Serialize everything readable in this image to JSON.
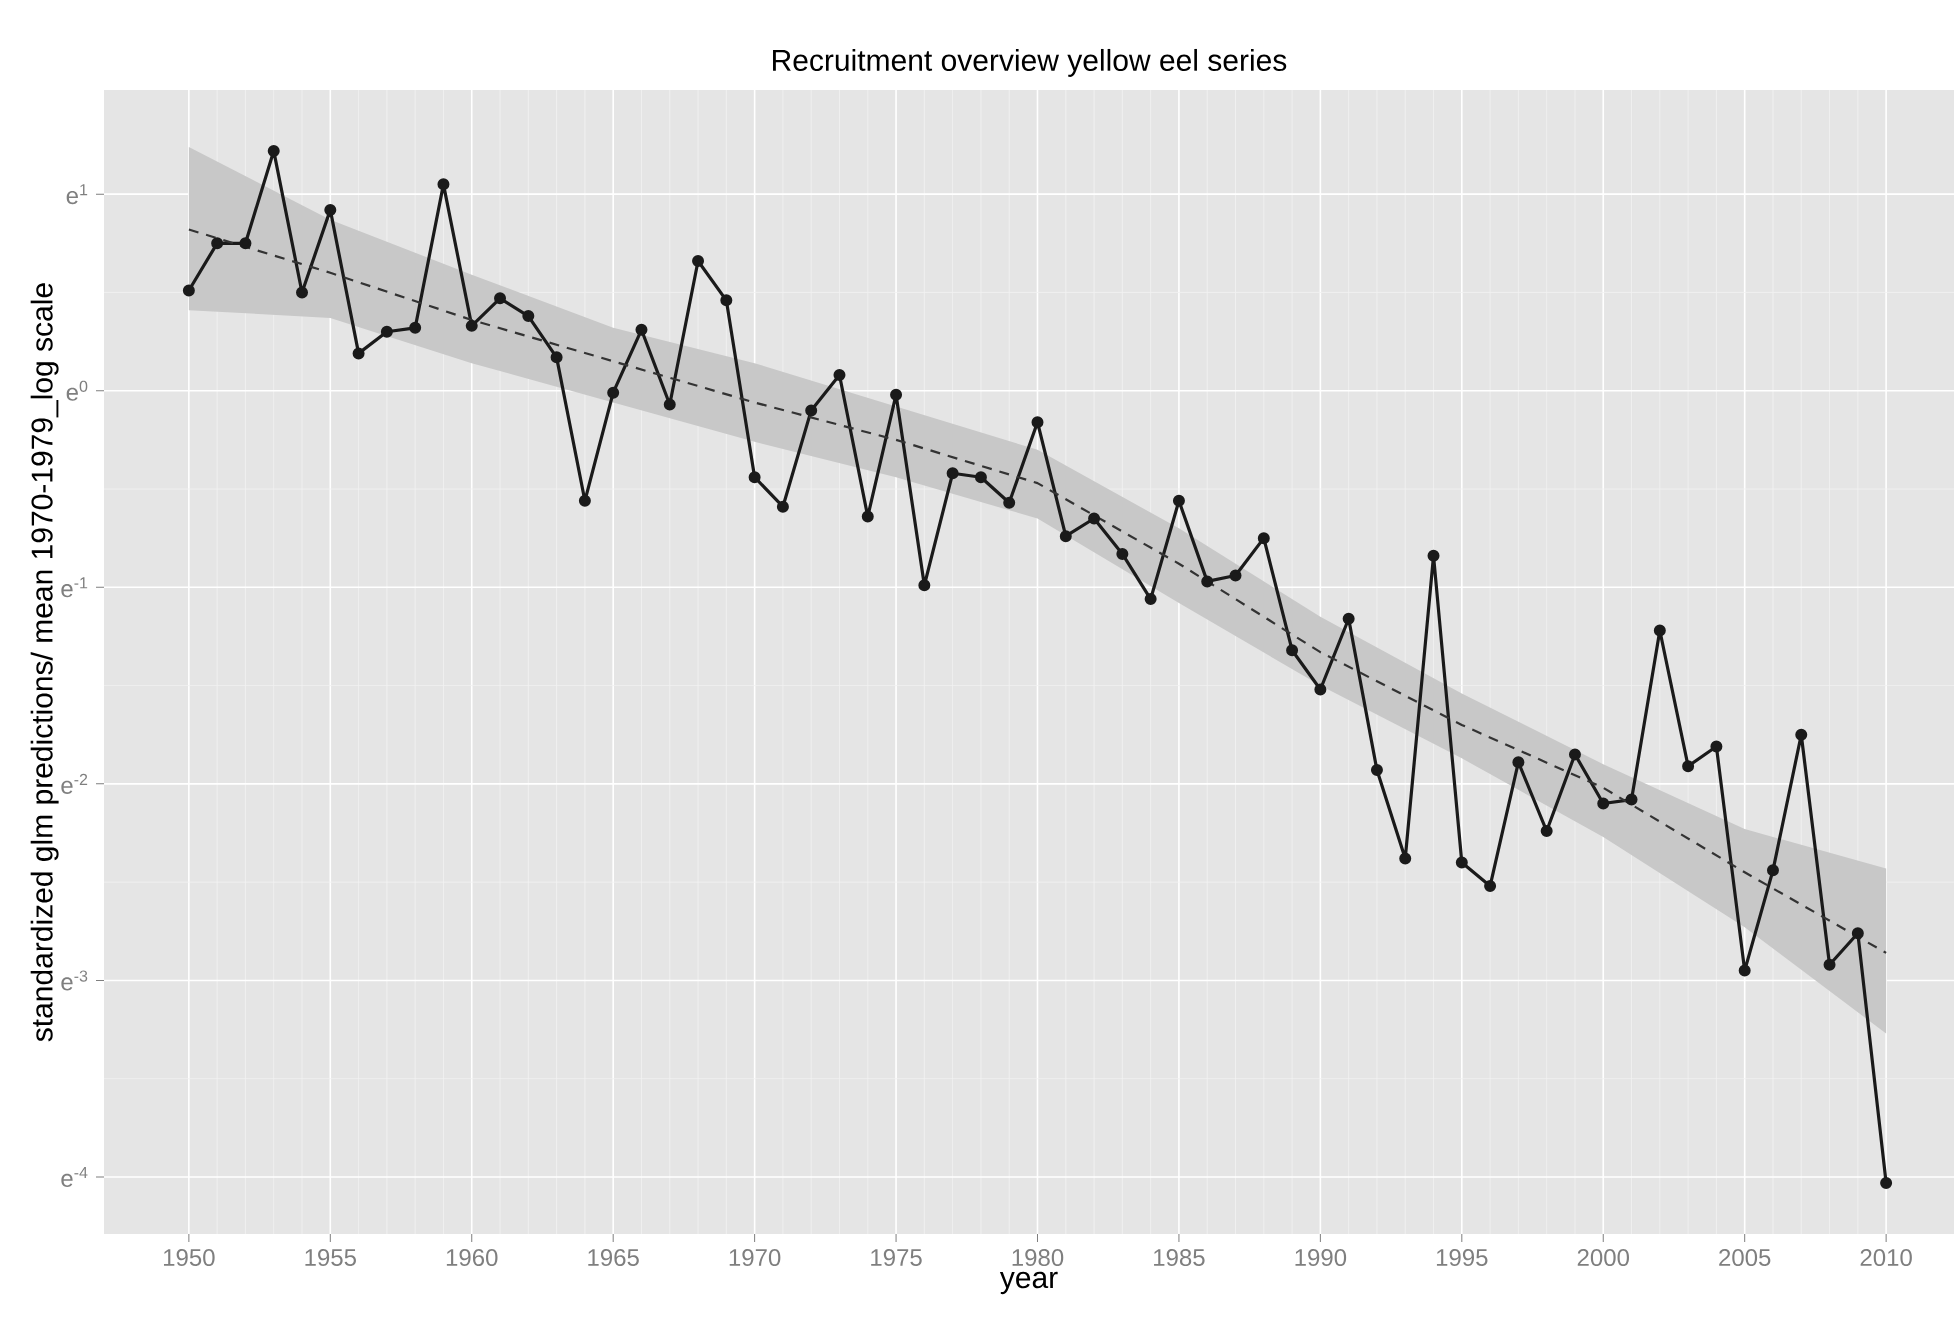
{
  "chart_data": {
    "type": "line",
    "title": "Recruitment overview yellow eel series",
    "xlabel": "year",
    "ylabel": "standardized glm predictions/ mean 1970-1979_log scale",
    "x": [
      1950,
      1951,
      1952,
      1953,
      1954,
      1955,
      1956,
      1957,
      1958,
      1959,
      1960,
      1961,
      1962,
      1963,
      1964,
      1965,
      1966,
      1967,
      1968,
      1969,
      1970,
      1971,
      1972,
      1973,
      1974,
      1975,
      1976,
      1977,
      1978,
      1979,
      1980,
      1981,
      1982,
      1983,
      1984,
      1985,
      1986,
      1987,
      1988,
      1989,
      1990,
      1991,
      1992,
      1993,
      1994,
      1995,
      1996,
      1997,
      1998,
      1999,
      2000,
      2001,
      2002,
      2003,
      2004,
      2005,
      2006,
      2007,
      2008,
      2009,
      2010
    ],
    "series": [
      {
        "color": "#1a1a1a",
        "marker": "circle",
        "line_style": "solid",
        "values": [
          0.51,
          0.75,
          0.75,
          1.22,
          0.5,
          0.92,
          0.19,
          0.3,
          0.32,
          1.05,
          0.33,
          0.47,
          0.38,
          0.17,
          -0.56,
          -0.01,
          0.31,
          -0.07,
          0.66,
          0.46,
          -0.44,
          -0.59,
          -0.1,
          0.08,
          -0.64,
          -0.02,
          -0.99,
          -0.42,
          -0.44,
          -0.57,
          -0.16,
          -0.74,
          -0.65,
          -0.83,
          -1.06,
          -0.56,
          -0.97,
          -0.94,
          -0.75,
          -1.32,
          -1.52,
          -1.16,
          -1.93,
          -2.38,
          -0.84,
          -2.4,
          -2.52,
          -1.89,
          -2.24,
          -1.85,
          -2.1,
          -2.08,
          -1.22,
          -1.91,
          -1.81,
          -2.95,
          -2.44,
          -1.75,
          -2.92,
          -2.76,
          -4.03
        ]
      },
      {
        "type": "line",
        "color": "#333333",
        "marker": "none",
        "line_style": "dashed",
        "x": [
          1950,
          1955,
          1960,
          1965,
          1970,
          1975,
          1980,
          1985,
          1990,
          1995,
          2000,
          2005,
          2010
        ],
        "values": [
          0.82,
          0.6,
          0.36,
          0.15,
          -0.06,
          -0.25,
          -0.47,
          -0.88,
          -1.33,
          -1.7,
          -2.02,
          -2.45,
          -2.86
        ],
        "upper": [
          1.24,
          0.87,
          0.59,
          0.32,
          0.14,
          -0.08,
          -0.3,
          -0.7,
          -1.15,
          -1.54,
          -1.9,
          -2.23,
          -2.43
        ],
        "lower": [
          0.41,
          0.37,
          0.14,
          -0.06,
          -0.26,
          -0.44,
          -0.65,
          -1.08,
          -1.5,
          -1.87,
          -2.27,
          -2.73,
          -3.27
        ]
      }
    ],
    "grid": true,
    "xlim": [
      1947,
      2012.4
    ],
    "ylim": [
      -4.29,
      1.53
    ],
    "xticks": [
      1950,
      1955,
      1960,
      1965,
      1970,
      1975,
      1980,
      1985,
      1990,
      1995,
      2000,
      2005,
      2010
    ],
    "yticks": [
      {
        "value": -4,
        "label": "e$^{-4}$"
      },
      {
        "value": -3,
        "label": "e$^{-3}$"
      },
      {
        "value": -2,
        "label": "e$^{-2}$"
      },
      {
        "value": -1,
        "label": "e$^{-1}$"
      },
      {
        "value": 0,
        "label": "e$^{0}$"
      },
      {
        "value": 1,
        "label": "e$^{1}$"
      }
    ]
  }
}
